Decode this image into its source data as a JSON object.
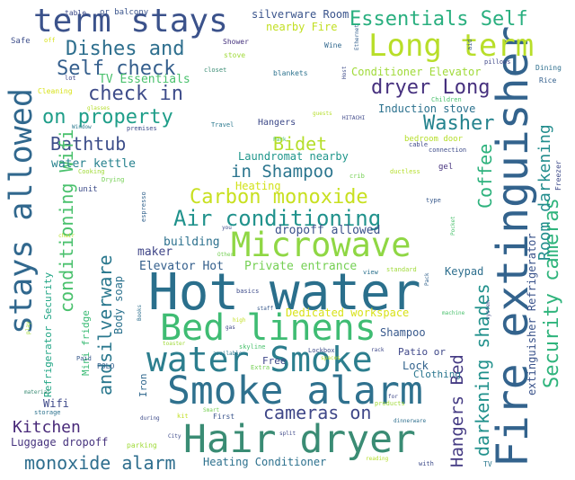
{
  "words": [
    {
      "id": "w01",
      "text": "Hot water",
      "color": "#2a6f8c"
    },
    {
      "id": "w02",
      "text": "Fire extinguisher",
      "color": "#33638d"
    },
    {
      "id": "w03",
      "text": "Smoke alarm",
      "color": "#2f718e"
    },
    {
      "id": "w04",
      "text": "Hair dryer",
      "color": "#3a8c74"
    },
    {
      "id": "w05",
      "text": "Bed linens",
      "color": "#3fbc73"
    },
    {
      "id": "w06",
      "text": "water Smoke",
      "color": "#2c7e8e"
    },
    {
      "id": "w07",
      "text": "Microwave",
      "color": "#8fd744"
    },
    {
      "id": "w08",
      "text": "stays allowed",
      "color": "#31688e"
    },
    {
      "id": "w09",
      "text": "term stays",
      "color": "#3b528b"
    },
    {
      "id": "w10",
      "text": "Long term",
      "color": "#b8de29"
    },
    {
      "id": "w11",
      "text": "Air conditioning",
      "color": "#20928c"
    },
    {
      "id": "w12",
      "text": "Security cameras",
      "color": "#2fb47c"
    },
    {
      "id": "w13",
      "text": "Carbon monoxide",
      "color": "#c8e020"
    },
    {
      "id": "w14",
      "text": "Essentials Self",
      "color": "#29af7f"
    },
    {
      "id": "w15",
      "text": "Dishes and",
      "color": "#2e6f8e"
    },
    {
      "id": "w16",
      "text": "Self check",
      "color": "#355f8d"
    },
    {
      "id": "w17",
      "text": "check in",
      "color": "#3e4c8a"
    },
    {
      "id": "w18",
      "text": "dryer Long",
      "color": "#46307e"
    },
    {
      "id": "w19",
      "text": "on property",
      "color": "#1f9e89"
    },
    {
      "id": "w20",
      "text": "Washer",
      "color": "#25838e"
    },
    {
      "id": "w21",
      "text": "Bathtub",
      "color": "#3d4e8a"
    },
    {
      "id": "w22",
      "text": "Bidet",
      "color": "#b5de2b"
    },
    {
      "id": "w23",
      "text": "in Shampoo",
      "color": "#2b758e"
    },
    {
      "id": "w24",
      "text": "cameras on",
      "color": "#3f4788"
    },
    {
      "id": "w25",
      "text": "Kitchen",
      "color": "#482979"
    },
    {
      "id": "w26",
      "text": "monoxide alarm",
      "color": "#2e6e8e"
    },
    {
      "id": "w27",
      "text": "Coffee",
      "color": "#2db27d"
    },
    {
      "id": "w28",
      "text": "Room darkening",
      "color": "#228d8d"
    },
    {
      "id": "w29",
      "text": "darkening shades",
      "color": "#21918c"
    },
    {
      "id": "w30",
      "text": "Hangers Bed",
      "color": "#443a83"
    },
    {
      "id": "w31",
      "text": "conditioning Wifi",
      "color": "#4ac16d"
    },
    {
      "id": "w32",
      "text": "andsilverware",
      "color": "#2a788e"
    },
    {
      "id": "w33",
      "text": "Dedicated workspace",
      "color": "#d8e219"
    },
    {
      "id": "w34",
      "text": "Private entrance",
      "color": "#75d054"
    },
    {
      "id": "w35",
      "text": "Elevator Hot",
      "color": "#35608d"
    },
    {
      "id": "w36",
      "text": "building",
      "color": "#2d718e"
    },
    {
      "id": "w37",
      "text": "maker",
      "color": "#404688"
    },
    {
      "id": "w38",
      "text": "Laundromat nearby",
      "color": "#1f968b"
    },
    {
      "id": "w39",
      "text": "water kettle",
      "color": "#26818e"
    },
    {
      "id": "w40",
      "text": "TV Essentials",
      "color": "#4ac16d"
    },
    {
      "id": "w41",
      "text": "Heating",
      "color": "#d2e21b"
    },
    {
      "id": "w42",
      "text": "dropoff allowed",
      "color": "#3b528b"
    },
    {
      "id": "w43",
      "text": "Induction stove",
      "color": "#2c728e"
    },
    {
      "id": "w44",
      "text": "Conditioner Elevator",
      "color": "#a0da39"
    },
    {
      "id": "w45",
      "text": "silverware Room",
      "color": "#3a548c"
    },
    {
      "id": "w46",
      "text": "nearby Fire",
      "color": "#c2df23"
    },
    {
      "id": "w47",
      "text": "Body soap",
      "color": "#2c728e"
    },
    {
      "id": "w48",
      "text": "Mini fridge",
      "color": "#3bbb75"
    },
    {
      "id": "w49",
      "text": "Refrigerator Security",
      "color": "#21a585"
    },
    {
      "id": "w50",
      "text": "Luggage dropoff",
      "color": "#46337e"
    },
    {
      "id": "w51",
      "text": "Heating Conditioner",
      "color": "#2d718e"
    },
    {
      "id": "w52",
      "text": "Wifi",
      "color": "#3e4989"
    },
    {
      "id": "w53",
      "text": "Shampoo",
      "color": "#38598c"
    },
    {
      "id": "w54",
      "text": "Patio or",
      "color": "#3f4889"
    },
    {
      "id": "w55",
      "text": "Lock",
      "color": "#33638d"
    },
    {
      "id": "w56",
      "text": "Clothing",
      "color": "#2a768e"
    },
    {
      "id": "w57",
      "text": "Free",
      "color": "#3f4889"
    },
    {
      "id": "w58",
      "text": "Iron",
      "color": "#31688e"
    },
    {
      "id": "w59",
      "text": "Keypad",
      "color": "#2e6f8e"
    },
    {
      "id": "w60",
      "text": "extinguisher Refrigerator",
      "color": "#3a538b"
    },
    {
      "id": "w61",
      "text": "Hangers",
      "color": "#3e4a89"
    },
    {
      "id": "w62",
      "text": "bedroom door",
      "color": "#b5de2b"
    },
    {
      "id": "w63",
      "text": "gel",
      "color": "#46337e"
    },
    {
      "id": "w64",
      "text": "table",
      "color": "#3e4c8a"
    },
    {
      "id": "w65",
      "text": "or balcony",
      "color": "#3a548c"
    },
    {
      "id": "w66",
      "text": "Safe",
      "color": "#3d4e8a"
    },
    {
      "id": "w67",
      "text": "off",
      "color": "#d8e219"
    },
    {
      "id": "w68",
      "text": "Shower",
      "color": "#46337e"
    },
    {
      "id": "w69",
      "text": "Wine",
      "color": "#31688e"
    },
    {
      "id": "w70",
      "text": "stove",
      "color": "#a0da39"
    },
    {
      "id": "w71",
      "text": "blankets",
      "color": "#2c728e"
    },
    {
      "id": "w72",
      "text": "closet",
      "color": "#3a8c74"
    },
    {
      "id": "w73",
      "text": "Cleaning",
      "color": "#d8e219"
    },
    {
      "id": "w74",
      "text": "pillows",
      "color": "#3f4889"
    },
    {
      "id": "w75",
      "text": "Dining",
      "color": "#2e6f8e"
    },
    {
      "id": "w76",
      "text": "Rice",
      "color": "#35608d"
    },
    {
      "id": "w77",
      "text": "Children",
      "color": "#4ac16d"
    },
    {
      "id": "w78",
      "text": "Travel",
      "color": "#2a788e"
    },
    {
      "id": "w79",
      "text": "Park",
      "color": "#4ac16d"
    },
    {
      "id": "w80",
      "text": "connection",
      "color": "#3e4c8a"
    },
    {
      "id": "w81",
      "text": "cable",
      "color": "#3f4889"
    },
    {
      "id": "w82",
      "text": "Cooking",
      "color": "#a0da39"
    },
    {
      "id": "w83",
      "text": "Drying",
      "color": "#75d054"
    },
    {
      "id": "w84",
      "text": "unit",
      "color": "#3e4c8a"
    },
    {
      "id": "w85",
      "text": "espresso",
      "color": "#33638d"
    },
    {
      "id": "w86",
      "text": "crib",
      "color": "#75d054"
    },
    {
      "id": "w87",
      "text": "ductless",
      "color": "#b5de2b"
    },
    {
      "id": "w88",
      "text": "type",
      "color": "#38598c"
    },
    {
      "id": "w89",
      "text": "Freezer",
      "color": "#3e4a89"
    },
    {
      "id": "w90",
      "text": "Pocket",
      "color": "#4ac16d"
    },
    {
      "id": "w91",
      "text": "Pack",
      "color": "#33638d"
    },
    {
      "id": "w92",
      "text": "view",
      "color": "#2c728e"
    },
    {
      "id": "w93",
      "text": "standard",
      "color": "#a0da39"
    },
    {
      "id": "w94",
      "text": "basics",
      "color": "#3e4c8a"
    },
    {
      "id": "w95",
      "text": "staff",
      "color": "#38598c"
    },
    {
      "id": "w96",
      "text": "gas",
      "color": "#3f4889"
    },
    {
      "id": "w97",
      "text": "high",
      "color": "#c2df23"
    },
    {
      "id": "w98",
      "text": "skyline",
      "color": "#4ac16d"
    },
    {
      "id": "w99",
      "text": "Books",
      "color": "#2e6f8e"
    },
    {
      "id": "w100",
      "text": "toaster",
      "color": "#a0da39"
    },
    {
      "id": "w101",
      "text": "Extra",
      "color": "#75d054"
    },
    {
      "id": "w102",
      "text": "available",
      "color": "#2a788e"
    },
    {
      "id": "w103",
      "text": "spaces",
      "color": "#b5de2b"
    },
    {
      "id": "w104",
      "text": "Lockbox",
      "color": "#3e4c8a"
    },
    {
      "id": "w105",
      "text": "rack",
      "color": "#3f4889"
    },
    {
      "id": "w106",
      "text": "POLO",
      "color": "#35608d"
    },
    {
      "id": "w107",
      "text": "Paid",
      "color": "#38598c"
    },
    {
      "id": "w108",
      "text": "storage",
      "color": "#2c728e"
    },
    {
      "id": "w109",
      "text": "material",
      "color": "#3a8c74"
    },
    {
      "id": "w110",
      "text": "play",
      "color": "#a0da39"
    },
    {
      "id": "w111",
      "text": "during",
      "color": "#3e4c8a"
    },
    {
      "id": "w112",
      "text": "kit",
      "color": "#c2df23"
    },
    {
      "id": "w113",
      "text": "First",
      "color": "#3a548c"
    },
    {
      "id": "w114",
      "text": "City",
      "color": "#3e4c8a"
    },
    {
      "id": "w115",
      "text": "parking",
      "color": "#a0da39"
    },
    {
      "id": "w116",
      "text": "split",
      "color": "#3f4889"
    },
    {
      "id": "w117",
      "text": "Smart",
      "color": "#75d054"
    },
    {
      "id": "w118",
      "text": "dinnerware",
      "color": "#2e6f8e"
    },
    {
      "id": "w119",
      "text": "for",
      "color": "#3f4889"
    },
    {
      "id": "w120",
      "text": "products",
      "color": "#a0da39"
    },
    {
      "id": "w121",
      "text": "reading",
      "color": "#b5de2b"
    },
    {
      "id": "w122",
      "text": "with",
      "color": "#3e4c8a"
    },
    {
      "id": "w123",
      "text": "TV",
      "color": "#2a788e"
    },
    {
      "id": "w124",
      "text": "aid",
      "color": "#38598c"
    },
    {
      "id": "w125",
      "text": "Host",
      "color": "#3e4c8a"
    },
    {
      "id": "w126",
      "text": "Ethernet",
      "color": "#35608d"
    },
    {
      "id": "w127",
      "text": "HITACHI",
      "color": "#3f4889"
    },
    {
      "id": "w128",
      "text": "machine",
      "color": "#4ac16d"
    },
    {
      "id": "w129",
      "text": "system",
      "color": "#3e4c8a"
    },
    {
      "id": "w130",
      "text": "lot",
      "color": "#3f4889"
    },
    {
      "id": "w131",
      "text": "glasses",
      "color": "#b5de2b"
    },
    {
      "id": "w132",
      "text": "Window",
      "color": "#2a788e"
    },
    {
      "id": "w133",
      "text": "premises",
      "color": "#3e4c8a"
    },
    {
      "id": "w134",
      "text": "guests",
      "color": "#b5de2b"
    },
    {
      "id": "w135",
      "text": "chair",
      "color": "#b5de2b"
    },
    {
      "id": "w136",
      "text": "Other",
      "color": "#75d054"
    },
    {
      "id": "w137",
      "text": "you",
      "color": "#3e4c8a"
    }
  ]
}
